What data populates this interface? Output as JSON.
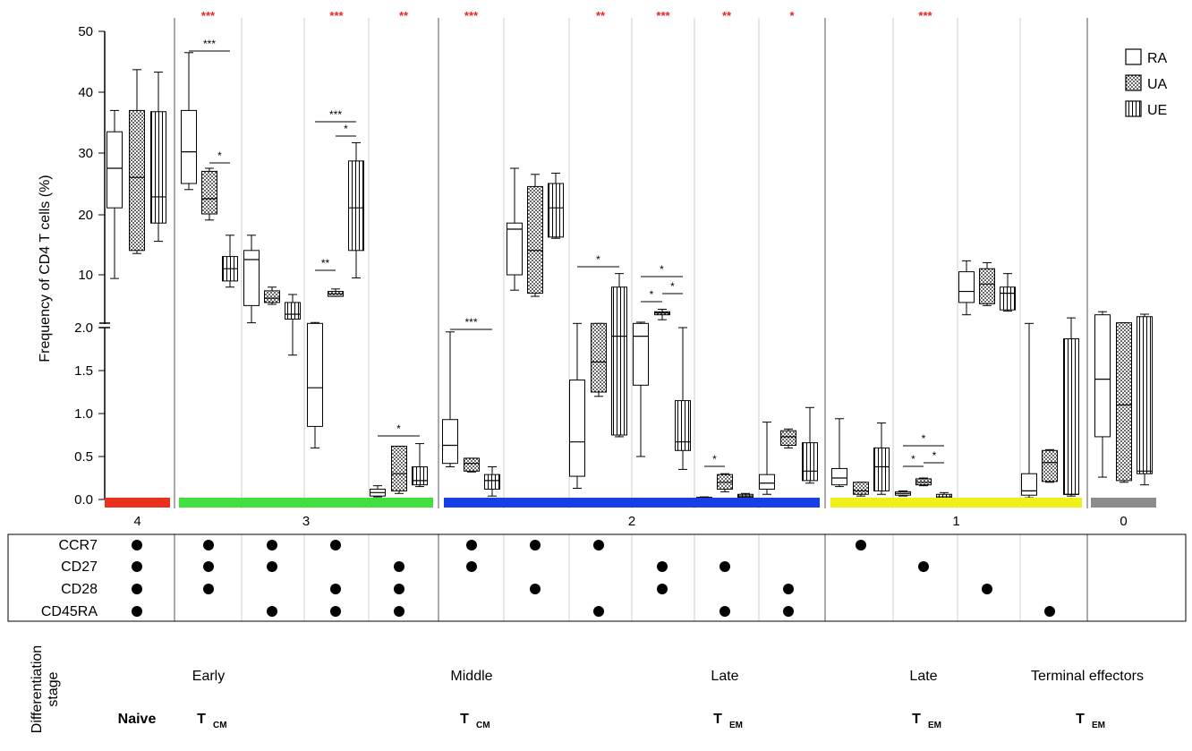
{
  "chart_data": {
    "type": "box",
    "ylabel": "Frequency of CD4 T cells  (%)",
    "y_upper_ticks": [
      "10",
      "20",
      "30",
      "40",
      "50"
    ],
    "y_lower_ticks": [
      "0.0",
      "0.5",
      "1.0",
      "1.5",
      "2.0"
    ],
    "y_axis_note": "broken axis: linear 0-2 below the break, 2-50 above",
    "legend": [
      {
        "name": "RA",
        "fill": "empty"
      },
      {
        "name": "UA",
        "fill": "dotted"
      },
      {
        "name": "UE",
        "fill": "vertical-lines"
      }
    ],
    "groups": [
      {
        "label": "4",
        "color": "#e8321e"
      },
      {
        "label": "3",
        "color": "#3fe03f"
      },
      {
        "label": "2",
        "color": "#1440e6"
      },
      {
        "label": "1",
        "color": "#f0f019"
      },
      {
        "label": "0",
        "color": "#8c8c8c"
      }
    ],
    "markers": [
      "CCR7",
      "CD27",
      "CD28",
      "CD45RA"
    ],
    "subsets": [
      {
        "group": "4",
        "red_stars": "",
        "markers": [
          1,
          1,
          1,
          1
        ],
        "boxes": [
          [
            9.4,
            21,
            27.5,
            33.5,
            37
          ],
          [
            13.5,
            14,
            26,
            37,
            43.7
          ],
          [
            15.5,
            18.5,
            22.8,
            36.8,
            43.3
          ]
        ]
      },
      {
        "group": "3",
        "red_stars": "***",
        "markers": [
          1,
          1,
          1,
          0
        ],
        "boxes": [
          [
            24,
            25,
            30.2,
            37,
            46.5
          ],
          [
            19,
            20,
            22.5,
            27,
            27.5
          ],
          [
            8,
            9,
            11,
            13,
            16.5
          ]
        ]
      },
      {
        "group": "3",
        "red_stars": "",
        "markers": [
          1,
          1,
          0,
          1
        ],
        "boxes": [
          [
            2.2,
            5,
            12.5,
            14,
            16.5
          ],
          [
            5.2,
            5.5,
            6.2,
            7.4,
            8
          ]
        ],
        "ue_low": [
          1.68,
          2.8,
          3.6,
          5.5,
          6.8
        ]
      },
      {
        "group": "3",
        "red_stars": "***",
        "markers": [
          1,
          0,
          1,
          1
        ],
        "boxes": [
          [
            6.5,
            6.5,
            6.9,
            7.3,
            7.7
          ],
          [
            9.5,
            14,
            21,
            28.7,
            31.7
          ]
        ],
        "ra_low": [
          0.6,
          0.85,
          1.3,
          2.1,
          2.25
        ]
      },
      {
        "group": "3",
        "red_stars": "**",
        "markers": [
          0,
          1,
          1,
          1
        ],
        "boxes_low": [
          [
            0.03,
            0.04,
            0.08,
            0.12,
            0.16
          ],
          [
            0.07,
            0.1,
            0.3,
            0.62,
            0.62
          ],
          [
            0.15,
            0.17,
            0.22,
            0.38,
            0.65
          ]
        ]
      },
      {
        "group": "2",
        "red_stars": "***",
        "markers": [
          1,
          1,
          0,
          0
        ],
        "boxes_low": [
          [
            0.38,
            0.42,
            0.63,
            0.93,
            1.95
          ],
          [
            0.32,
            0.33,
            0.42,
            0.48,
            0.48
          ],
          [
            0.04,
            0.12,
            0.22,
            0.29,
            0.38
          ]
        ]
      },
      {
        "group": "2",
        "red_stars": "",
        "markers": [
          1,
          0,
          1,
          0
        ],
        "boxes": [
          [
            7.5,
            10,
            17.5,
            18.5,
            27.5
          ],
          [
            6.5,
            7,
            14,
            24.5,
            26.5
          ],
          [
            16,
            16.2,
            21,
            25,
            26.7
          ]
        ]
      },
      {
        "group": "2",
        "red_stars": "**",
        "markers": [
          1,
          0,
          0,
          1
        ],
        "boxes_low": [
          [
            0.13,
            0.27,
            0.67,
            1.39,
            2.1
          ]
        ],
        "ua_low": [
          1.2,
          1.25,
          1.6,
          2.1,
          2.1
        ],
        "ue_mixed": [
          0.73,
          0.75,
          1.9,
          8,
          10.2
        ]
      },
      {
        "group": "2",
        "red_stars": "***",
        "markers": [
          0,
          1,
          1,
          0
        ],
        "boxes": [
          [
            2.7,
            3.5,
            3.8,
            4,
            4.4
          ]
        ],
        "ra_mixed": [
          0.5,
          1.33,
          1.9,
          2.1,
          2.3
        ],
        "ue_low": [
          0.35,
          0.57,
          0.67,
          1.15,
          2.0
        ]
      },
      {
        "group": "2",
        "red_stars": "**",
        "markers": [
          0,
          1,
          0,
          1
        ],
        "boxes_low": [
          [
            0.01,
            0.015,
            0.02,
            0.025,
            0.03
          ],
          [
            0.09,
            0.12,
            0.2,
            0.29,
            0.3
          ],
          [
            0.02,
            0.025,
            0.04,
            0.06,
            0.07
          ]
        ]
      },
      {
        "group": "2",
        "red_stars": "*",
        "markers": [
          0,
          0,
          1,
          1
        ],
        "boxes_low": [
          [
            0.06,
            0.12,
            0.19,
            0.29,
            0.9
          ],
          [
            0.6,
            0.63,
            0.73,
            0.8,
            0.82
          ],
          [
            0.19,
            0.22,
            0.33,
            0.66,
            1.07
          ]
        ]
      },
      {
        "group": "1",
        "red_stars": "",
        "markers": [
          1,
          0,
          0,
          0
        ],
        "boxes_low": [
          [
            0.15,
            0.17,
            0.25,
            0.36,
            0.94
          ],
          [
            0.04,
            0.06,
            0.1,
            0.2,
            0.2
          ],
          [
            0.06,
            0.1,
            0.38,
            0.6,
            0.89
          ]
        ]
      },
      {
        "group": "1",
        "red_stars": "***",
        "markers": [
          0,
          1,
          0,
          0
        ],
        "boxes_low": [
          [
            0.04,
            0.05,
            0.07,
            0.09,
            0.1
          ],
          [
            0.16,
            0.17,
            0.2,
            0.24,
            0.25
          ],
          [
            0.01,
            0.015,
            0.03,
            0.06,
            0.08
          ]
        ]
      },
      {
        "group": "1",
        "red_stars": "",
        "markers": [
          0,
          0,
          1,
          0
        ],
        "boxes": [
          [
            3.5,
            5.5,
            7.3,
            10.5,
            12.3
          ],
          [
            5,
            5.3,
            8.5,
            11,
            12
          ],
          [
            4.1,
            4.3,
            7,
            8,
            10.2
          ]
        ]
      },
      {
        "group": "1",
        "red_stars": "",
        "markers": [
          0,
          0,
          0,
          1
        ],
        "boxes_low": [
          [
            0.02,
            0.05,
            0.1,
            0.3,
            2.1
          ],
          [
            0.2,
            0.21,
            0.43,
            0.57,
            0.58
          ],
          [
            0.04,
            0.06,
            0.06,
            1.87,
            3
          ]
        ]
      },
      {
        "group": "0",
        "red_stars": "",
        "markers": [
          0,
          0,
          0,
          0
        ],
        "boxes_mixed": [
          [
            0.26,
            0.73,
            1.4,
            3.5,
            4
          ],
          [
            0.2,
            0.22,
            1.1,
            2.2,
            2.2
          ],
          [
            0.17,
            0.3,
            0.33,
            3.2,
            3.6
          ]
        ]
      }
    ],
    "sig_brackets": [
      {
        "label": "***"
      },
      {
        "label": "*"
      },
      {
        "label": "***"
      },
      {
        "label": "*"
      },
      {
        "label": "**"
      },
      {
        "label": "*"
      },
      {
        "label": "***"
      },
      {
        "label": "*"
      },
      {
        "label": "*"
      },
      {
        "label": "*"
      },
      {
        "label": "*"
      },
      {
        "label": "*"
      },
      {
        "label": "*"
      },
      {
        "label": "*"
      }
    ]
  },
  "stage_axis_label": [
    "Differentiation",
    "stage"
  ],
  "stages": [
    {
      "top": "",
      "bottom_main": "Naive",
      "bottom_sub": ""
    },
    {
      "top": "Early",
      "bottom_main": "T",
      "bottom_sub": "CM"
    },
    {
      "top": "Middle",
      "bottom_main": "T",
      "bottom_sub": "CM"
    },
    {
      "top": "Late",
      "bottom_main": "T",
      "bottom_sub": "EM"
    },
    {
      "top": "Late",
      "bottom_main": "T",
      "bottom_sub": "EM"
    },
    {
      "top": "Terminal effectors",
      "bottom_main": "T",
      "bottom_sub": "EM"
    }
  ]
}
